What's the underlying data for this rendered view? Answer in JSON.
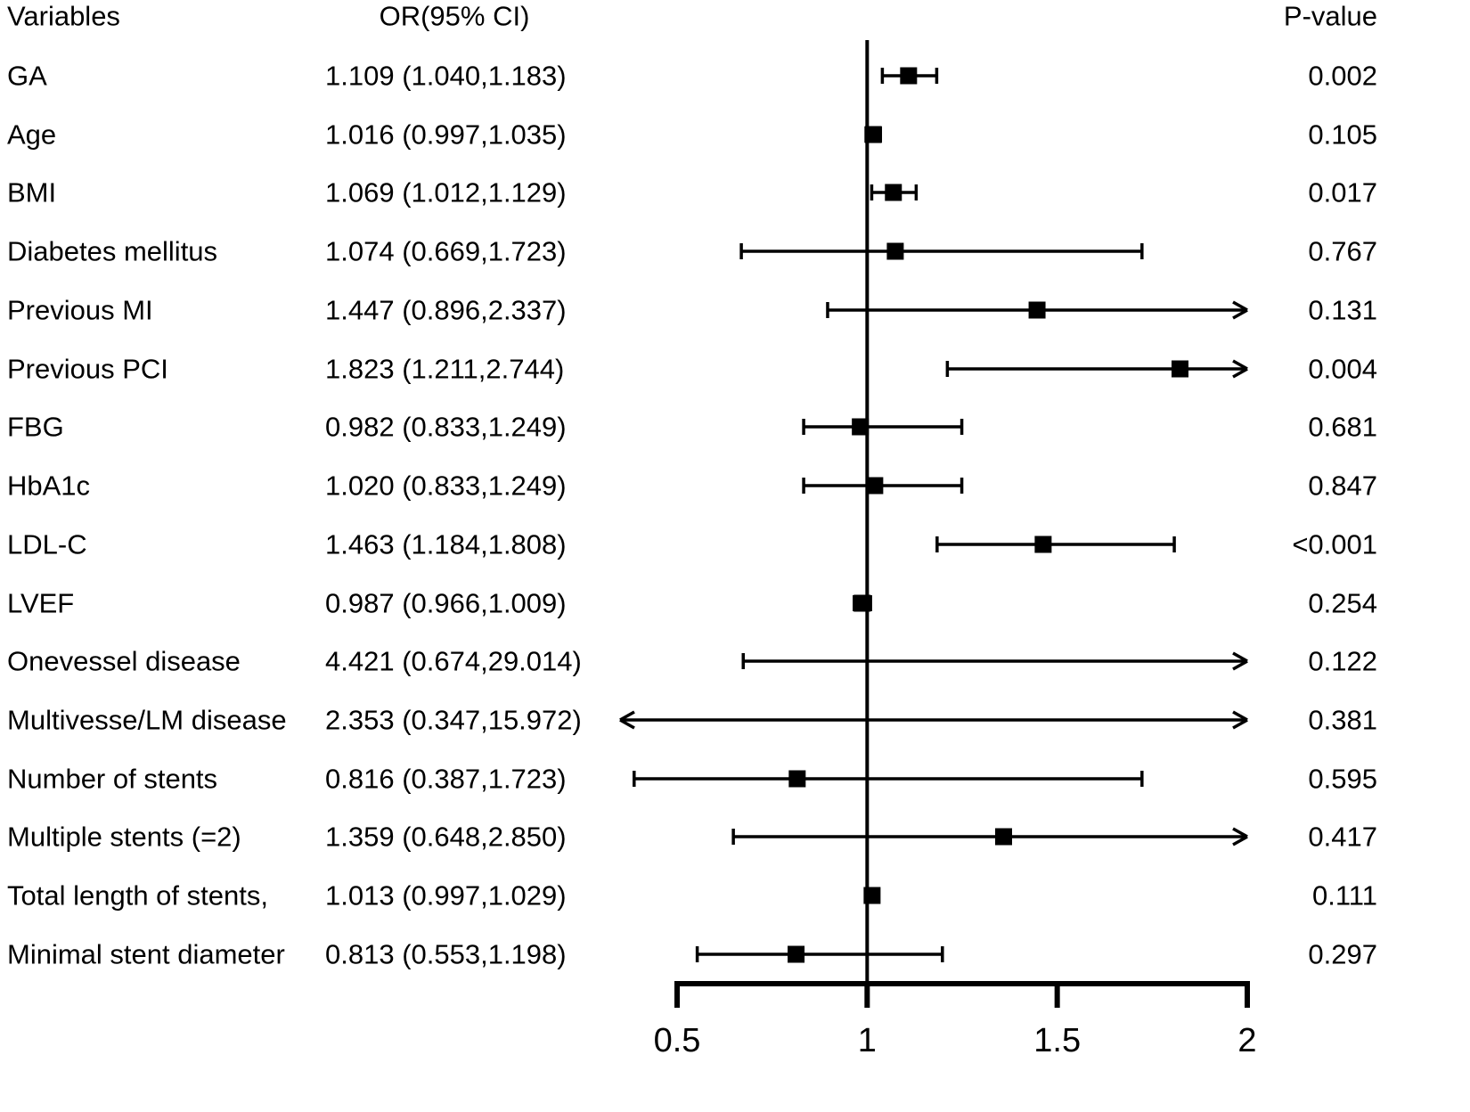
{
  "header": {
    "variables": "Variables",
    "or_ci": "OR(95% CI)",
    "p_value": "P-value"
  },
  "colors": {
    "foreground": "#000000",
    "background": "#ffffff"
  },
  "chart_data": {
    "type": "forest",
    "title": "",
    "x_axis": {
      "scale": "linear",
      "ticks": [
        0.5,
        1,
        1.5,
        2
      ],
      "tick_labels": [
        "0.5",
        "1",
        "1.5",
        "2"
      ],
      "reference_line": 1,
      "drawn_range": [
        0.35,
        2
      ]
    },
    "columns": [
      "Variables",
      "OR(95% CI)",
      "P-value"
    ],
    "rows": [
      {
        "label": "GA",
        "or_text": "1.109 (1.040,1.183)",
        "or": 1.109,
        "low": 1.04,
        "high": 1.183,
        "p": "0.002"
      },
      {
        "label": "Age",
        "or_text": "1.016 (0.997,1.035)",
        "or": 1.016,
        "low": 0.997,
        "high": 1.035,
        "p": "0.105"
      },
      {
        "label": "BMI",
        "or_text": "1.069 (1.012,1.129)",
        "or": 1.069,
        "low": 1.012,
        "high": 1.129,
        "p": "0.017"
      },
      {
        "label": "Diabetes mellitus",
        "or_text": "1.074 (0.669,1.723)",
        "or": 1.074,
        "low": 0.669,
        "high": 1.723,
        "p": "0.767"
      },
      {
        "label": "Previous MI",
        "or_text": "1.447 (0.896,2.337)",
        "or": 1.447,
        "low": 0.896,
        "high": 2.337,
        "p": "0.131"
      },
      {
        "label": "Previous PCI",
        "or_text": "1.823 (1.211,2.744)",
        "or": 1.823,
        "low": 1.211,
        "high": 2.744,
        "p": "0.004"
      },
      {
        "label": "FBG",
        "or_text": "0.982 (0.833,1.249)",
        "or": 0.982,
        "low": 0.833,
        "high": 1.249,
        "p": "0.681"
      },
      {
        "label": "HbA1c",
        "or_text": "1.020 (0.833,1.249)",
        "or": 1.02,
        "low": 0.833,
        "high": 1.249,
        "p": "0.847"
      },
      {
        "label": "LDL-C",
        "or_text": "1.463 (1.184,1.808)",
        "or": 1.463,
        "low": 1.184,
        "high": 1.808,
        "p": "<0.001"
      },
      {
        "label": "LVEF",
        "or_text": "0.987 (0.966,1.009)",
        "or": 0.987,
        "low": 0.966,
        "high": 1.009,
        "p": "0.254"
      },
      {
        "label": "Onevessel disease",
        "or_text": "4.421 (0.674,29.014)",
        "or": 4.421,
        "low": 0.674,
        "high": 29.014,
        "p": "0.122"
      },
      {
        "label": "Multivesse/LM disease",
        "or_text": "2.353 (0.347,15.972)",
        "or": 2.353,
        "low": 0.347,
        "high": 15.972,
        "p": "0.381"
      },
      {
        "label": "Number of stents",
        "or_text": "0.816 (0.387,1.723)",
        "or": 0.816,
        "low": 0.387,
        "high": 1.723,
        "p": "0.595"
      },
      {
        "label": "Multiple stents (=2)",
        "or_text": "1.359 (0.648,2.850)",
        "or": 1.359,
        "low": 0.648,
        "high": 2.85,
        "p": "0.417"
      },
      {
        "label": "Total length of stents,",
        "or_text": "1.013 (0.997,1.029)",
        "or": 1.013,
        "low": 0.997,
        "high": 1.029,
        "p": "0.111"
      },
      {
        "label": "Minimal stent diameter",
        "or_text": "0.813 (0.553,1.198)",
        "or": 0.813,
        "low": 0.553,
        "high": 1.198,
        "p": "0.297"
      }
    ]
  }
}
